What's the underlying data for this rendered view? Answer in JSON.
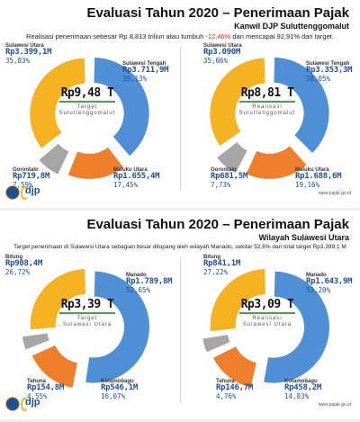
{
  "slide1": {
    "title": "Evaluasi Tahun 2020 – Penerimaan Pajak",
    "subtitle": "Kanwil DJP Suluttenggomalut",
    "line_a": "Realisasi penerimaan sebesar Rp 8,813 triliun atau tumbuh ",
    "line_b": "-12,46%",
    "line_c": " dan mencapai 92,91% dari target.",
    "logo": "djp",
    "web": "www.pajak.go.id"
  },
  "slide2": {
    "title": "Evaluasi Tahun 2020 – Penerimaan Pajak",
    "subtitle": "Wilayah Sulawesi Utara",
    "line_a": "Target penerimaan di Sulawesi Utara sebagian besar ditopang oleh wilayah Manado, sekitar 52,6% dari total target Rp3.399,1 M",
    "logo": "djp",
    "web": "www.pajak.go.id"
  },
  "chart_data": [
    {
      "type": "pie",
      "center_value": "Rp9,48 T",
      "center_label_1": "Target",
      "center_label_2": "Suluttenggomalut",
      "categories": [
        "Sulawesi Utara",
        "Sulawesi Tengah",
        "Maluku Utara",
        "Gorontalo"
      ],
      "values": [
        35.83,
        39.13,
        17.45,
        7.59
      ],
      "amounts": [
        "Rp3.399,1M",
        "Rp3.711,9M",
        "Rp1.655,4M",
        "Rp719,8M"
      ],
      "percents": [
        "35,83%",
        "39,13%",
        "17,45%",
        "7,59%"
      ],
      "colors": [
        "#f5b321",
        "#4f8fd6",
        "#f07f2b",
        "#a6a6a6"
      ]
    },
    {
      "type": "pie",
      "center_value": "Rp8,81 T",
      "center_label_1": "Realisasi",
      "center_label_2": "Suluttenggomalut",
      "categories": [
        "Sulawesi Utara",
        "Sulawesi Tengah",
        "Maluku Utara",
        "Gorontalo"
      ],
      "values": [
        35.06,
        38.05,
        19.16,
        7.73
      ],
      "amounts": [
        "Rp3.090M",
        "Rp3.353,3M",
        "Rp1.688,6M",
        "Rp681,5M"
      ],
      "percents": [
        "35,06%",
        "38,05%",
        "19,16%",
        "7,73%"
      ],
      "colors": [
        "#f5b321",
        "#4f8fd6",
        "#f07f2b",
        "#a6a6a6"
      ]
    },
    {
      "type": "pie",
      "center_value": "Rp3,39 T",
      "center_label_1": "Target",
      "center_label_2": "Sulawesi Utara",
      "categories": [
        "Bitung",
        "Manado",
        "Kotamobagu",
        "Tahuna"
      ],
      "values": [
        26.72,
        52.65,
        16.07,
        4.55
      ],
      "amounts": [
        "Rp908,4M",
        "Rp1.789,8M",
        "Rp546,1M",
        "Rp154,8M"
      ],
      "percents": [
        "26,72%",
        "52,65%",
        "16,07%",
        "4,55%"
      ],
      "colors": [
        "#f5b321",
        "#4f8fd6",
        "#f07f2b",
        "#a6a6a6"
      ]
    },
    {
      "type": "pie",
      "center_value": "Rp3,09 T",
      "center_label_1": "Realisasi",
      "center_label_2": "Sulawesi Utara",
      "categories": [
        "Bitung",
        "Manado",
        "Kotamobagu",
        "Tahuna"
      ],
      "values": [
        27.22,
        53.2,
        14.83,
        4.76
      ],
      "amounts": [
        "Rp841,1M",
        "Rp1.643,9M",
        "Rp458,2M",
        "Rp146,7M"
      ],
      "percents": [
        "27,22%",
        "53,20%",
        "14,83%",
        "4,76%"
      ],
      "colors": [
        "#f5b321",
        "#4f8fd6",
        "#f07f2b",
        "#a6a6a6"
      ]
    }
  ]
}
